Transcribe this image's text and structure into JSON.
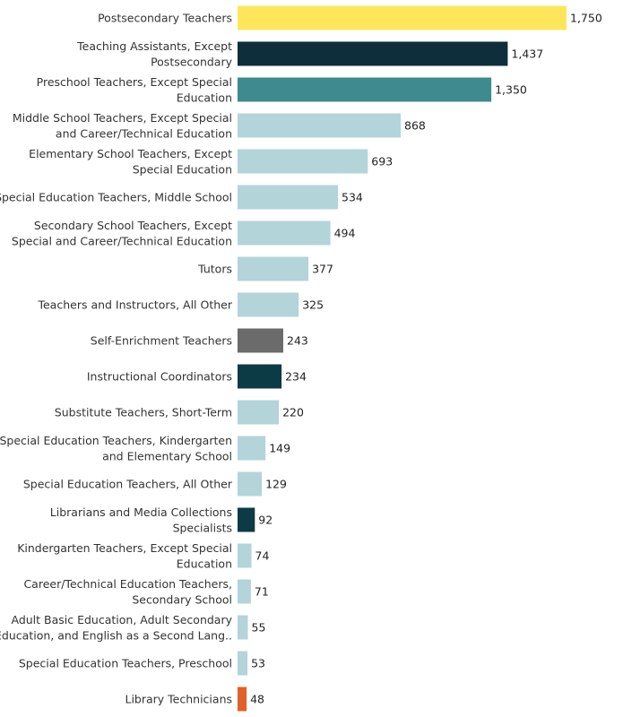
{
  "chart_data": {
    "type": "bar",
    "orientation": "horizontal",
    "title": "",
    "xlabel": "",
    "ylabel": "",
    "xlim": [
      0,
      1750
    ],
    "grid": false,
    "categories": [
      [
        "Postsecondary Teachers"
      ],
      [
        "Teaching Assistants, Except",
        "Postsecondary"
      ],
      [
        "Preschool Teachers, Except Special",
        "Education"
      ],
      [
        "Middle School Teachers, Except Special",
        "and Career/Technical Education"
      ],
      [
        "Elementary School Teachers, Except",
        "Special Education"
      ],
      [
        "Special Education Teachers, Middle School"
      ],
      [
        "Secondary School Teachers, Except",
        "Special and Career/Technical Education"
      ],
      [
        "Tutors"
      ],
      [
        "Teachers and Instructors, All Other"
      ],
      [
        "Self-Enrichment Teachers"
      ],
      [
        "Instructional Coordinators"
      ],
      [
        "Substitute Teachers, Short-Term"
      ],
      [
        "Special Education Teachers, Kindergarten",
        "and Elementary School"
      ],
      [
        "Special Education Teachers, All Other"
      ],
      [
        "Librarians and Media Collections",
        "Specialists"
      ],
      [
        "Kindergarten Teachers, Except Special",
        "Education"
      ],
      [
        "Career/Technical Education Teachers,",
        "Secondary School"
      ],
      [
        "Adult Basic Education, Adult Secondary",
        "Education, and English as a Second Lang.."
      ],
      [
        "Special Education Teachers, Preschool"
      ],
      [
        "Library Technicians"
      ]
    ],
    "values": [
      1750,
      1437,
      1350,
      868,
      693,
      534,
      494,
      377,
      325,
      243,
      234,
      220,
      149,
      129,
      92,
      74,
      71,
      55,
      53,
      48
    ],
    "value_labels": [
      "1,750",
      "1,437",
      "1,350",
      "868",
      "693",
      "534",
      "494",
      "377",
      "325",
      "243",
      "234",
      "220",
      "149",
      "129",
      "92",
      "74",
      "71",
      "55",
      "53",
      "48"
    ],
    "colors": [
      "#ffe55a",
      "#0f2e3c",
      "#3f8a8f",
      "#b3d4d9",
      "#b3d4d9",
      "#b3d4d9",
      "#b3d4d9",
      "#b3d4d9",
      "#b3d4d9",
      "#6b6b6b",
      "#0c3a45",
      "#b3d4d9",
      "#b3d4d9",
      "#b3d4d9",
      "#0c3a45",
      "#b3d4d9",
      "#b3d4d9",
      "#b3d4d9",
      "#b3d4d9",
      "#e2602b"
    ]
  }
}
